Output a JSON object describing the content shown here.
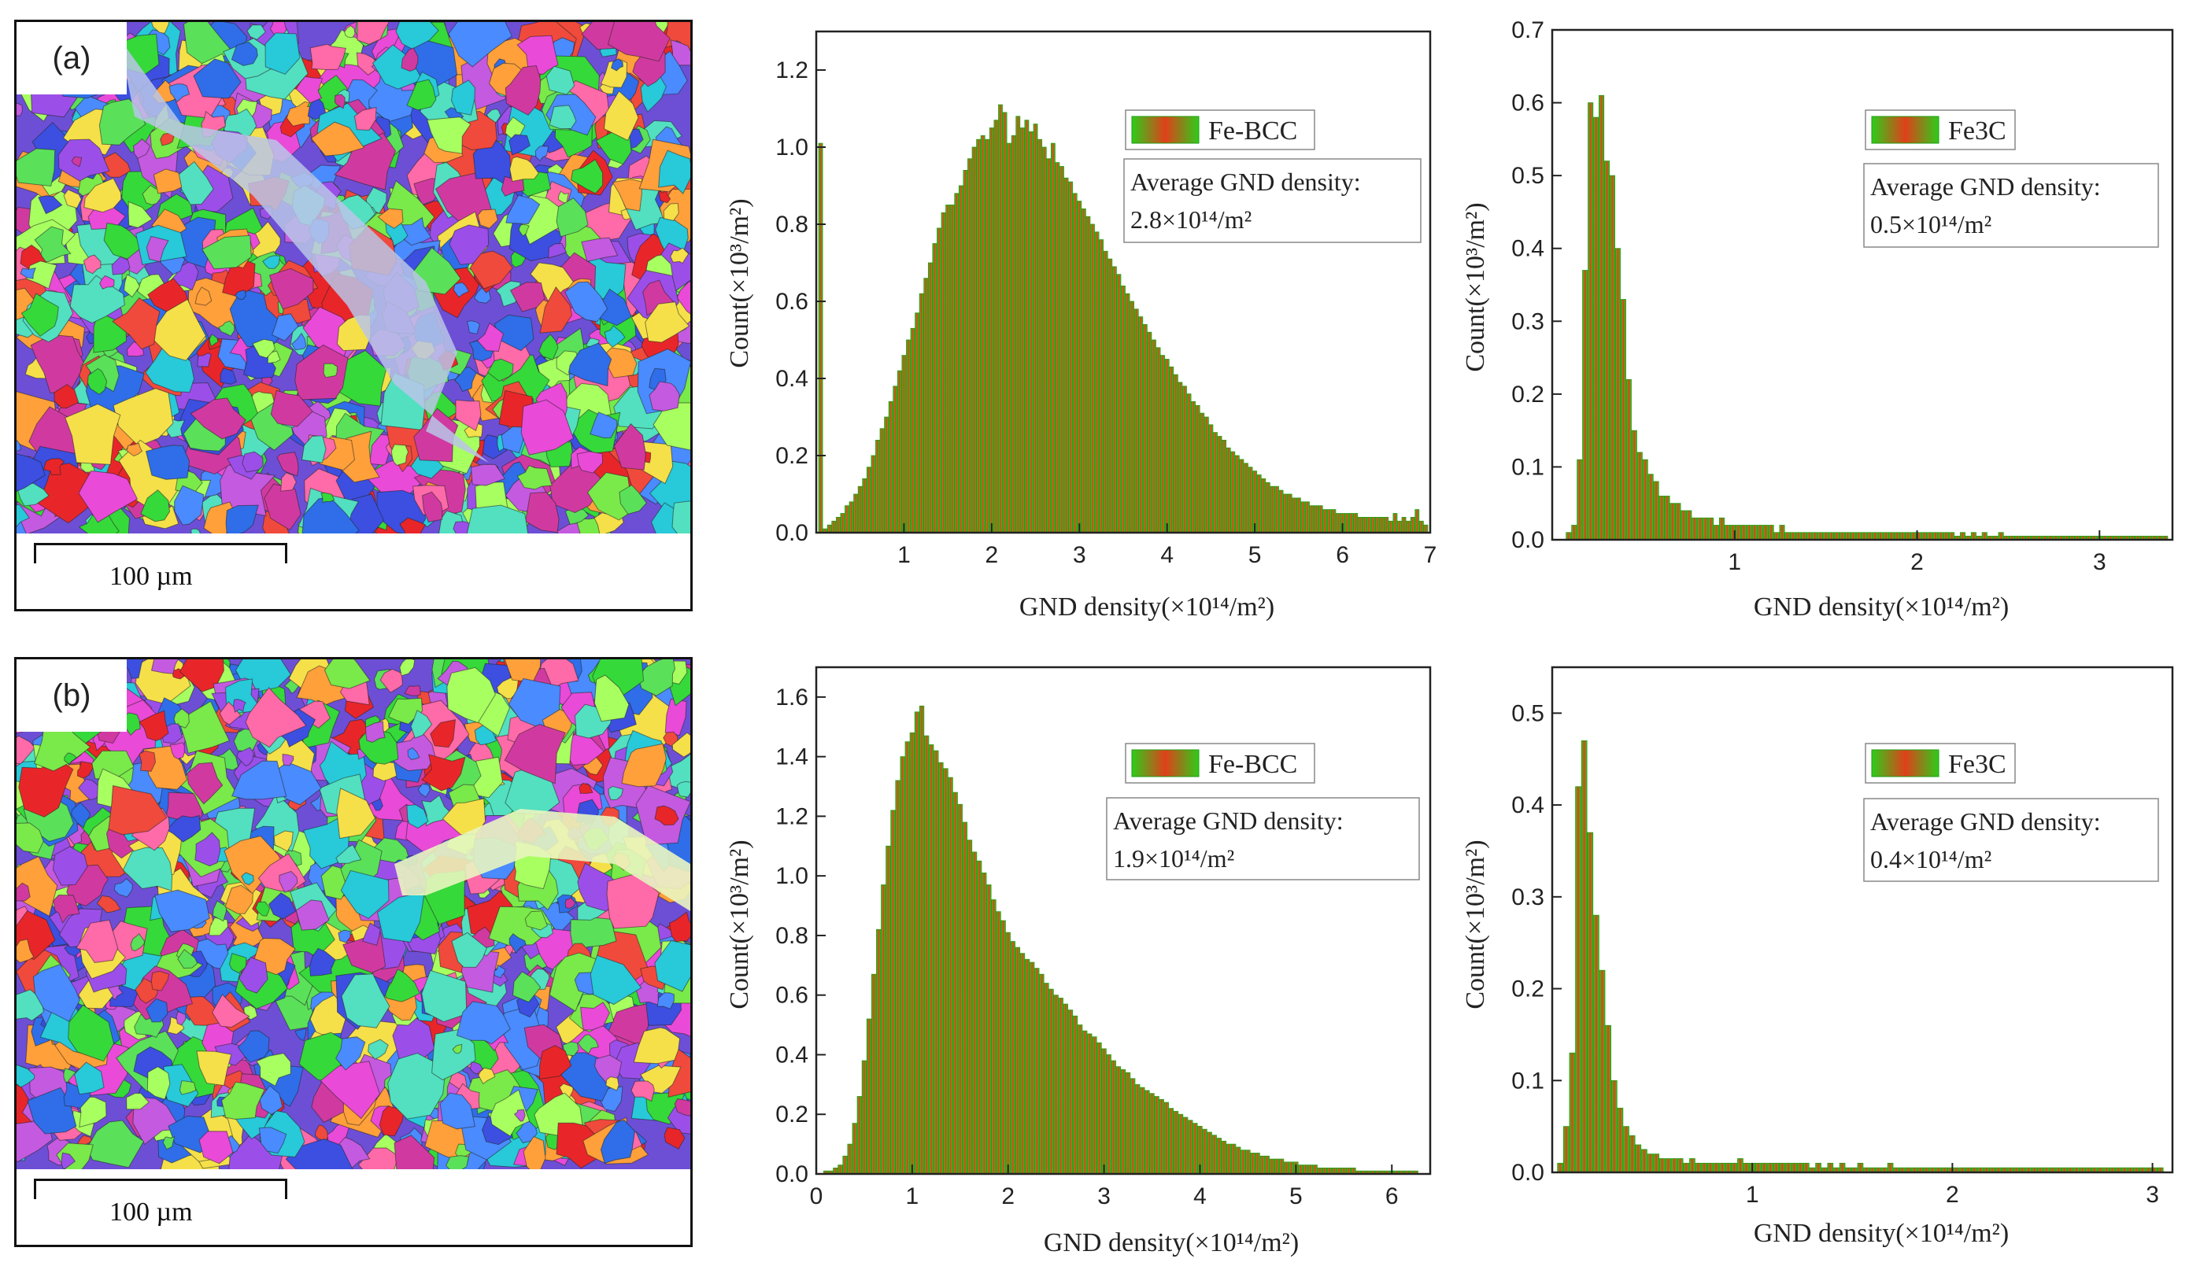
{
  "maps": [
    {
      "tag": "(a)",
      "scale_label": "100 µm"
    },
    {
      "tag": "(b)",
      "scale_label": "100 µm"
    }
  ],
  "colors": {
    "bar_edge": "#2ecc1a",
    "bar_center": "#e0401a",
    "bar_fill": "#9ab82a"
  },
  "chart_data": [
    {
      "id": "a-bcc",
      "type": "bar",
      "title": "",
      "legend": "Fe-BCC",
      "annotation_line1": "Average GND density:",
      "annotation_value": "2.8",
      "xlabel": "GND density(×10¹⁴/m²)",
      "ylabel": "Count(×10³/m²)",
      "xlim": [
        0,
        7
      ],
      "ylim": [
        0,
        1.3
      ],
      "xticks": [
        1,
        2,
        3,
        4,
        5,
        6,
        7
      ],
      "yticks": [
        0.0,
        0.2,
        0.4,
        0.6,
        0.8,
        1.0,
        1.2
      ],
      "x": [
        0.05,
        0.1,
        0.15,
        0.2,
        0.25,
        0.3,
        0.35,
        0.4,
        0.45,
        0.5,
        0.55,
        0.6,
        0.65,
        0.7,
        0.75,
        0.8,
        0.85,
        0.9,
        0.95,
        1.0,
        1.05,
        1.1,
        1.15,
        1.2,
        1.25,
        1.3,
        1.35,
        1.4,
        1.45,
        1.5,
        1.55,
        1.6,
        1.65,
        1.7,
        1.75,
        1.8,
        1.85,
        1.9,
        1.95,
        2.0,
        2.05,
        2.1,
        2.15,
        2.2,
        2.25,
        2.3,
        2.35,
        2.4,
        2.45,
        2.5,
        2.55,
        2.6,
        2.65,
        2.7,
        2.75,
        2.8,
        2.85,
        2.9,
        2.95,
        3.0,
        3.05,
        3.1,
        3.15,
        3.2,
        3.25,
        3.3,
        3.35,
        3.4,
        3.45,
        3.5,
        3.55,
        3.6,
        3.65,
        3.7,
        3.75,
        3.8,
        3.85,
        3.9,
        3.95,
        4.0,
        4.05,
        4.1,
        4.15,
        4.2,
        4.25,
        4.3,
        4.35,
        4.4,
        4.45,
        4.5,
        4.55,
        4.6,
        4.65,
        4.7,
        4.75,
        4.8,
        4.85,
        4.9,
        4.95,
        5.0,
        5.05,
        5.1,
        5.15,
        5.2,
        5.25,
        5.3,
        5.35,
        5.4,
        5.45,
        5.5,
        5.55,
        5.6,
        5.65,
        5.7,
        5.75,
        5.8,
        5.85,
        5.9,
        5.95,
        6.0,
        6.05,
        6.1,
        6.15,
        6.2,
        6.25,
        6.3,
        6.35,
        6.4,
        6.45,
        6.5,
        6.55,
        6.6,
        6.65,
        6.7,
        6.75,
        6.8,
        6.85,
        6.9,
        6.95
      ],
      "values": [
        1.01,
        0.01,
        0.02,
        0.03,
        0.04,
        0.05,
        0.07,
        0.08,
        0.1,
        0.12,
        0.14,
        0.17,
        0.2,
        0.24,
        0.27,
        0.3,
        0.34,
        0.38,
        0.42,
        0.46,
        0.5,
        0.53,
        0.57,
        0.62,
        0.66,
        0.7,
        0.75,
        0.79,
        0.83,
        0.85,
        0.85,
        0.88,
        0.9,
        0.94,
        0.97,
        1.0,
        1.02,
        1.03,
        1.02,
        1.05,
        1.07,
        1.11,
        1.09,
        1.01,
        1.03,
        1.08,
        1.05,
        1.07,
        1.04,
        1.06,
        1.02,
        1.0,
        0.97,
        1.01,
        0.96,
        0.95,
        0.92,
        0.91,
        0.88,
        0.86,
        0.84,
        0.82,
        0.8,
        0.78,
        0.76,
        0.73,
        0.71,
        0.69,
        0.67,
        0.64,
        0.62,
        0.6,
        0.58,
        0.56,
        0.54,
        0.52,
        0.5,
        0.48,
        0.46,
        0.45,
        0.43,
        0.41,
        0.39,
        0.38,
        0.36,
        0.34,
        0.33,
        0.31,
        0.3,
        0.28,
        0.26,
        0.25,
        0.24,
        0.22,
        0.21,
        0.2,
        0.19,
        0.18,
        0.17,
        0.16,
        0.15,
        0.14,
        0.13,
        0.12,
        0.12,
        0.11,
        0.1,
        0.1,
        0.09,
        0.09,
        0.08,
        0.08,
        0.07,
        0.07,
        0.07,
        0.06,
        0.06,
        0.06,
        0.05,
        0.05,
        0.05,
        0.05,
        0.05,
        0.04,
        0.04,
        0.04,
        0.04,
        0.04,
        0.04,
        0.04,
        0.03,
        0.05,
        0.03,
        0.04,
        0.03,
        0.04,
        0.06,
        0.03,
        0.02
      ]
    },
    {
      "id": "a-fe3c",
      "type": "bar",
      "title": "",
      "legend": "Fe3C",
      "annotation_line1": "Average GND density:",
      "annotation_value": "0.5",
      "xlabel": "GND density(×10¹⁴/m²)",
      "ylabel": "Count(×10³/m²)",
      "xlim": [
        0,
        3.4
      ],
      "ylim": [
        0,
        0.7
      ],
      "xticks": [
        1,
        2,
        3
      ],
      "yticks": [
        0.0,
        0.1,
        0.2,
        0.3,
        0.4,
        0.5,
        0.6,
        0.7
      ],
      "x": [
        0.09,
        0.12,
        0.15,
        0.18,
        0.21,
        0.24,
        0.27,
        0.3,
        0.33,
        0.36,
        0.39,
        0.42,
        0.45,
        0.48,
        0.51,
        0.54,
        0.57,
        0.6,
        0.63,
        0.66,
        0.69,
        0.72,
        0.75,
        0.78,
        0.81,
        0.84,
        0.87,
        0.9,
        0.93,
        0.96,
        0.99,
        1.02,
        1.05,
        1.08,
        1.11,
        1.14,
        1.17,
        1.2,
        1.23,
        1.26,
        1.29,
        1.32,
        1.35,
        1.38,
        1.41,
        1.44,
        1.47,
        1.5,
        1.53,
        1.56,
        1.59,
        1.62,
        1.65,
        1.68,
        1.71,
        1.74,
        1.77,
        1.8,
        1.83,
        1.86,
        1.89,
        1.92,
        1.95,
        1.98,
        2.01,
        2.04,
        2.07,
        2.1,
        2.13,
        2.16,
        2.19,
        2.22,
        2.25,
        2.28,
        2.31,
        2.34,
        2.37,
        2.4,
        2.43,
        2.46,
        2.49,
        2.52,
        2.55,
        2.58,
        2.61,
        2.64,
        2.67,
        2.7,
        2.73,
        2.76,
        2.79,
        2.82,
        2.85,
        2.88,
        2.91,
        2.94,
        2.97,
        3.0,
        3.03,
        3.06,
        3.09,
        3.12,
        3.15,
        3.18,
        3.21,
        3.24,
        3.27,
        3.3,
        3.33,
        3.36
      ],
      "values": [
        0.01,
        0.02,
        0.11,
        0.37,
        0.6,
        0.58,
        0.61,
        0.52,
        0.5,
        0.4,
        0.33,
        0.22,
        0.15,
        0.12,
        0.11,
        0.09,
        0.08,
        0.06,
        0.06,
        0.05,
        0.05,
        0.04,
        0.04,
        0.03,
        0.03,
        0.03,
        0.03,
        0.02,
        0.03,
        0.02,
        0.02,
        0.02,
        0.02,
        0.02,
        0.02,
        0.02,
        0.02,
        0.02,
        0.01,
        0.02,
        0.01,
        0.01,
        0.01,
        0.01,
        0.01,
        0.01,
        0.01,
        0.01,
        0.01,
        0.01,
        0.01,
        0.01,
        0.01,
        0.01,
        0.01,
        0.01,
        0.01,
        0.01,
        0.01,
        0.01,
        0.01,
        0.01,
        0.01,
        0.01,
        0.01,
        0.01,
        0.01,
        0.01,
        0.01,
        0.01,
        0.01,
        0.005,
        0.01,
        0.005,
        0.01,
        0.005,
        0.01,
        0.005,
        0.005,
        0.01,
        0.005,
        0.005,
        0.005,
        0.005,
        0.005,
        0.005,
        0.005,
        0.005,
        0.005,
        0.005,
        0.005,
        0.005,
        0.005,
        0.005,
        0.005,
        0.005,
        0.005,
        0.005,
        0.005,
        0.005,
        0.005,
        0.005,
        0.005,
        0.005,
        0.005,
        0.005,
        0.005,
        0.005,
        0.005,
        0.005
      ]
    },
    {
      "id": "b-bcc",
      "type": "bar",
      "title": "",
      "legend": "Fe-BCC",
      "annotation_line1": "Average GND density:",
      "annotation_value": "1.9",
      "xlabel": "GND density(×10¹⁴/m²)",
      "ylabel": "Count(×10³/m²)",
      "xlim": [
        0,
        6.4
      ],
      "ylim": [
        0,
        1.7
      ],
      "xticks": [
        0,
        1,
        2,
        3,
        4,
        5,
        6
      ],
      "yticks": [
        0.0,
        0.2,
        0.4,
        0.6,
        0.8,
        1.0,
        1.2,
        1.4,
        1.6
      ],
      "x": [
        0.05,
        0.1,
        0.15,
        0.2,
        0.25,
        0.3,
        0.35,
        0.4,
        0.45,
        0.5,
        0.55,
        0.6,
        0.65,
        0.7,
        0.75,
        0.8,
        0.85,
        0.9,
        0.95,
        1.0,
        1.05,
        1.1,
        1.15,
        1.2,
        1.25,
        1.3,
        1.35,
        1.4,
        1.45,
        1.5,
        1.55,
        1.6,
        1.65,
        1.7,
        1.75,
        1.8,
        1.85,
        1.9,
        1.95,
        2.0,
        2.05,
        2.1,
        2.15,
        2.2,
        2.25,
        2.3,
        2.35,
        2.4,
        2.45,
        2.5,
        2.55,
        2.6,
        2.65,
        2.7,
        2.75,
        2.8,
        2.85,
        2.9,
        2.95,
        3.0,
        3.05,
        3.1,
        3.15,
        3.2,
        3.25,
        3.3,
        3.35,
        3.4,
        3.45,
        3.5,
        3.55,
        3.6,
        3.65,
        3.7,
        3.75,
        3.8,
        3.85,
        3.9,
        3.95,
        4.0,
        4.05,
        4.1,
        4.15,
        4.2,
        4.25,
        4.3,
        4.35,
        4.4,
        4.45,
        4.5,
        4.55,
        4.6,
        4.65,
        4.7,
        4.75,
        4.8,
        4.85,
        4.9,
        4.95,
        5.0,
        5.05,
        5.1,
        5.15,
        5.2,
        5.25,
        5.3,
        5.35,
        5.4,
        5.45,
        5.5,
        5.55,
        5.6,
        5.65,
        5.7,
        5.75,
        5.8,
        5.85,
        5.9,
        5.95,
        6.0,
        6.05,
        6.1,
        6.15,
        6.2,
        6.25
      ],
      "values": [
        0.0,
        0.01,
        0.01,
        0.02,
        0.03,
        0.06,
        0.1,
        0.17,
        0.26,
        0.38,
        0.52,
        0.67,
        0.82,
        0.97,
        1.1,
        1.22,
        1.32,
        1.4,
        1.45,
        1.48,
        1.55,
        1.57,
        1.47,
        1.44,
        1.42,
        1.38,
        1.36,
        1.33,
        1.28,
        1.24,
        1.18,
        1.12,
        1.08,
        1.05,
        1.01,
        0.97,
        0.92,
        0.88,
        0.85,
        0.81,
        0.78,
        0.76,
        0.74,
        0.72,
        0.71,
        0.69,
        0.67,
        0.64,
        0.62,
        0.6,
        0.59,
        0.57,
        0.55,
        0.53,
        0.5,
        0.48,
        0.47,
        0.46,
        0.44,
        0.42,
        0.4,
        0.38,
        0.36,
        0.35,
        0.34,
        0.32,
        0.3,
        0.29,
        0.28,
        0.27,
        0.26,
        0.25,
        0.24,
        0.22,
        0.21,
        0.2,
        0.19,
        0.18,
        0.17,
        0.16,
        0.15,
        0.14,
        0.13,
        0.12,
        0.11,
        0.1,
        0.1,
        0.09,
        0.08,
        0.08,
        0.07,
        0.07,
        0.06,
        0.06,
        0.05,
        0.05,
        0.05,
        0.04,
        0.04,
        0.04,
        0.03,
        0.03,
        0.03,
        0.03,
        0.02,
        0.02,
        0.02,
        0.02,
        0.02,
        0.02,
        0.02,
        0.02,
        0.01,
        0.01,
        0.01,
        0.01,
        0.01,
        0.01,
        0.01,
        0.01,
        0.01,
        0.01,
        0.01,
        0.01,
        0.01
      ]
    },
    {
      "id": "b-fe3c",
      "type": "bar",
      "title": "",
      "legend": "Fe3C",
      "annotation_line1": "Average GND density:",
      "annotation_value": "0.4",
      "xlabel": "GND density(×10¹⁴/m²)",
      "ylabel": "Count(×10³/m²)",
      "xlim": [
        0,
        3.1
      ],
      "ylim": [
        0,
        0.55
      ],
      "xticks": [
        1,
        2,
        3
      ],
      "yticks": [
        0.0,
        0.1,
        0.2,
        0.3,
        0.4,
        0.5
      ],
      "x": [
        0.04,
        0.07,
        0.1,
        0.13,
        0.16,
        0.19,
        0.22,
        0.25,
        0.28,
        0.31,
        0.34,
        0.37,
        0.4,
        0.43,
        0.46,
        0.49,
        0.52,
        0.55,
        0.58,
        0.61,
        0.64,
        0.67,
        0.7,
        0.73,
        0.76,
        0.79,
        0.82,
        0.85,
        0.88,
        0.91,
        0.94,
        0.97,
        1.0,
        1.03,
        1.06,
        1.09,
        1.12,
        1.15,
        1.18,
        1.21,
        1.24,
        1.27,
        1.3,
        1.33,
        1.36,
        1.39,
        1.42,
        1.45,
        1.48,
        1.51,
        1.54,
        1.57,
        1.6,
        1.63,
        1.66,
        1.69,
        1.72,
        1.75,
        1.78,
        1.81,
        1.84,
        1.87,
        1.9,
        1.93,
        1.96,
        1.99,
        2.02,
        2.05,
        2.08,
        2.11,
        2.14,
        2.17,
        2.2,
        2.23,
        2.26,
        2.29,
        2.32,
        2.35,
        2.38,
        2.41,
        2.44,
        2.47,
        2.5,
        2.53,
        2.56,
        2.59,
        2.62,
        2.65,
        2.68,
        2.71,
        2.74,
        2.77,
        2.8,
        2.83,
        2.86,
        2.89,
        2.92,
        2.95,
        2.98,
        3.01,
        3.04
      ],
      "values": [
        0.01,
        0.05,
        0.13,
        0.42,
        0.47,
        0.37,
        0.28,
        0.22,
        0.16,
        0.1,
        0.07,
        0.05,
        0.04,
        0.03,
        0.025,
        0.02,
        0.02,
        0.015,
        0.015,
        0.015,
        0.015,
        0.01,
        0.015,
        0.01,
        0.01,
        0.01,
        0.01,
        0.01,
        0.01,
        0.01,
        0.015,
        0.01,
        0.01,
        0.01,
        0.01,
        0.01,
        0.01,
        0.01,
        0.01,
        0.01,
        0.01,
        0.01,
        0.005,
        0.01,
        0.005,
        0.01,
        0.005,
        0.01,
        0.005,
        0.005,
        0.01,
        0.005,
        0.005,
        0.005,
        0.005,
        0.01,
        0.005,
        0.005,
        0.005,
        0.005,
        0.005,
        0.005,
        0.005,
        0.005,
        0.005,
        0.005,
        0.005,
        0.005,
        0.005,
        0.005,
        0.005,
        0.005,
        0.005,
        0.005,
        0.005,
        0.005,
        0.005,
        0.005,
        0.005,
        0.005,
        0.005,
        0.005,
        0.005,
        0.005,
        0.005,
        0.005,
        0.005,
        0.005,
        0.005,
        0.005,
        0.005,
        0.005,
        0.005,
        0.005,
        0.005,
        0.005,
        0.005,
        0.005,
        0.005,
        0.005,
        0.005
      ]
    }
  ]
}
